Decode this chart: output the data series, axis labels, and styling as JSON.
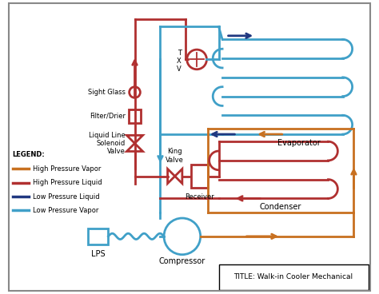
{
  "title": "Walk-in Cooler Mechanical",
  "colors": {
    "high_pressure_vapor": "#C87020",
    "high_pressure_liquid": "#B03030",
    "low_pressure_liquid": "#203880",
    "low_pressure_vapor": "#40A0C8",
    "border": "#888888",
    "background": "#FFFFFF"
  },
  "legend": {
    "title": "LEGEND:",
    "entries": [
      {
        "label": "High Pressure Vapor",
        "color": "#C87020"
      },
      {
        "label": "High Pressure Liquid",
        "color": "#B03030"
      },
      {
        "label": "Low Pressure Liquid",
        "color": "#203880"
      },
      {
        "label": "Low Pressure Vapor",
        "color": "#40A0C8"
      }
    ]
  },
  "labels": {
    "evaporator": "Evaporator",
    "condenser": "Condenser",
    "compressor": "Compressor",
    "lps": "LPS",
    "receiver": "Receiver",
    "king_valve": "King\nValve",
    "sight_glass": "Sight Glass",
    "filter_drier": "Filter/Drier",
    "liquid_line_solenoid": "Liquid Line\nSolenoid\nValve",
    "txv": "T\nX\nV"
  }
}
